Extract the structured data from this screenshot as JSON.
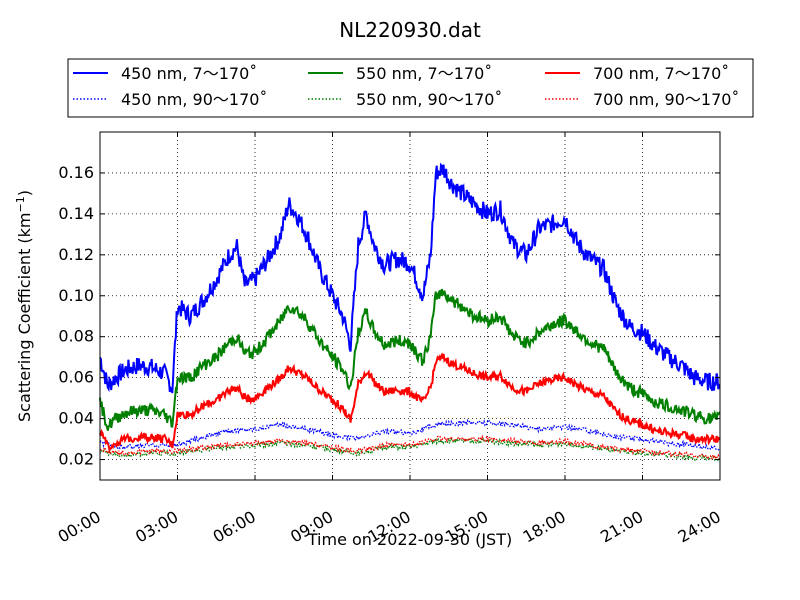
{
  "chart_data": {
    "type": "line",
    "title": "NL220930.dat",
    "xlabel": "Time on 2022-09-30 (JST)",
    "ylabel": "Scattering Coefficient (km",
    "ylabel_sup": "−1",
    "ylabel_end": ")",
    "x_unit": "hours",
    "xlim": [
      0,
      24
    ],
    "ylim": [
      0.01,
      0.18
    ],
    "x_ticks": [
      0,
      3,
      6,
      9,
      12,
      15,
      18,
      21,
      24
    ],
    "x_tick_labels": [
      "00:00",
      "03:00",
      "06:00",
      "09:00",
      "12:00",
      "15:00",
      "18:00",
      "21:00",
      "24:00"
    ],
    "y_ticks": [
      0.02,
      0.04,
      0.06,
      0.08,
      0.1,
      0.12,
      0.14,
      0.16
    ],
    "y_tick_labels": [
      "0.02",
      "0.04",
      "0.06",
      "0.08",
      "0.10",
      "0.12",
      "0.14",
      "0.16"
    ],
    "grid": true,
    "legend_position": "top, above plot, 3 columns",
    "series": [
      {
        "name": "450 nm, 7～170˚",
        "color": "#0000ff",
        "style": "solid",
        "x": [
          0,
          0.3,
          0.6,
          1.0,
          1.5,
          2.0,
          2.5,
          2.8,
          3.0,
          3.5,
          4.0,
          4.5,
          5.0,
          5.3,
          5.6,
          6.0,
          6.5,
          7.0,
          7.3,
          7.6,
          8.0,
          8.5,
          9.0,
          9.4,
          9.7,
          10.0,
          10.3,
          10.6,
          11.0,
          11.5,
          12.0,
          12.5,
          12.8,
          13.0,
          13.3,
          13.6,
          14.0,
          14.5,
          15.0,
          15.5,
          16.0,
          16.5,
          17.0,
          17.5,
          18.0,
          18.5,
          19.0,
          19.5,
          20.0,
          20.5,
          21.0,
          21.5,
          22.0,
          22.5,
          23.0,
          23.5,
          24.0
        ],
        "values": [
          0.07,
          0.056,
          0.06,
          0.064,
          0.066,
          0.065,
          0.062,
          0.055,
          0.095,
          0.09,
          0.098,
          0.108,
          0.12,
          0.124,
          0.105,
          0.108,
          0.118,
          0.13,
          0.145,
          0.14,
          0.13,
          0.113,
          0.1,
          0.09,
          0.076,
          0.125,
          0.14,
          0.125,
          0.115,
          0.118,
          0.116,
          0.1,
          0.12,
          0.16,
          0.162,
          0.155,
          0.15,
          0.145,
          0.14,
          0.142,
          0.125,
          0.12,
          0.133,
          0.135,
          0.138,
          0.125,
          0.118,
          0.113,
          0.095,
          0.085,
          0.082,
          0.075,
          0.07,
          0.066,
          0.06,
          0.058,
          0.058
        ]
      },
      {
        "name": "550 nm, 7～170˚",
        "color": "#008000",
        "style": "solid",
        "x": [
          0,
          0.3,
          0.6,
          1.0,
          1.5,
          2.0,
          2.5,
          2.8,
          3.0,
          3.5,
          4.0,
          4.5,
          5.0,
          5.3,
          5.6,
          6.0,
          6.5,
          7.0,
          7.3,
          7.6,
          8.0,
          8.5,
          9.0,
          9.4,
          9.7,
          10.0,
          10.3,
          10.6,
          11.0,
          11.5,
          12.0,
          12.5,
          12.8,
          13.0,
          13.3,
          13.6,
          14.0,
          14.5,
          15.0,
          15.5,
          16.0,
          16.5,
          17.0,
          17.5,
          18.0,
          18.5,
          19.0,
          19.5,
          20.0,
          20.5,
          21.0,
          21.5,
          22.0,
          22.5,
          23.0,
          23.5,
          24.0
        ],
        "values": [
          0.048,
          0.036,
          0.04,
          0.043,
          0.044,
          0.044,
          0.042,
          0.038,
          0.06,
          0.06,
          0.066,
          0.07,
          0.077,
          0.08,
          0.072,
          0.072,
          0.08,
          0.088,
          0.095,
          0.093,
          0.088,
          0.078,
          0.07,
          0.064,
          0.055,
          0.082,
          0.092,
          0.083,
          0.076,
          0.078,
          0.077,
          0.068,
          0.08,
          0.1,
          0.102,
          0.098,
          0.095,
          0.09,
          0.088,
          0.09,
          0.08,
          0.077,
          0.082,
          0.086,
          0.088,
          0.082,
          0.077,
          0.074,
          0.062,
          0.055,
          0.052,
          0.048,
          0.046,
          0.044,
          0.042,
          0.04,
          0.04
        ]
      },
      {
        "name": "700 nm, 7～170˚",
        "color": "#ff0000",
        "style": "solid",
        "x": [
          0,
          0.3,
          0.6,
          1.0,
          1.5,
          2.0,
          2.5,
          2.8,
          3.0,
          3.5,
          4.0,
          4.5,
          5.0,
          5.3,
          5.6,
          6.0,
          6.5,
          7.0,
          7.3,
          7.6,
          8.0,
          8.5,
          9.0,
          9.4,
          9.7,
          10.0,
          10.3,
          10.6,
          11.0,
          11.5,
          12.0,
          12.5,
          12.8,
          13.0,
          13.3,
          13.6,
          14.0,
          14.5,
          15.0,
          15.5,
          16.0,
          16.5,
          17.0,
          17.5,
          18.0,
          18.5,
          19.0,
          19.5,
          20.0,
          20.5,
          21.0,
          21.5,
          22.0,
          22.5,
          23.0,
          23.5,
          24.0
        ],
        "values": [
          0.034,
          0.026,
          0.028,
          0.03,
          0.031,
          0.031,
          0.03,
          0.027,
          0.042,
          0.042,
          0.046,
          0.049,
          0.054,
          0.055,
          0.05,
          0.05,
          0.055,
          0.06,
          0.065,
          0.063,
          0.06,
          0.054,
          0.049,
          0.045,
          0.039,
          0.057,
          0.063,
          0.058,
          0.053,
          0.054,
          0.053,
          0.048,
          0.055,
          0.068,
          0.07,
          0.067,
          0.065,
          0.062,
          0.06,
          0.061,
          0.055,
          0.053,
          0.057,
          0.059,
          0.06,
          0.056,
          0.053,
          0.051,
          0.043,
          0.039,
          0.037,
          0.034,
          0.033,
          0.032,
          0.03,
          0.03,
          0.03
        ]
      },
      {
        "name": "450 nm, 90～170˚",
        "color": "#0000ff",
        "style": "dotted",
        "x": [
          0,
          1,
          2,
          3,
          4,
          5,
          6,
          7,
          8,
          9,
          10,
          11,
          12,
          13,
          14,
          15,
          16,
          17,
          18,
          19,
          20,
          21,
          22,
          23,
          24
        ],
        "values": [
          0.028,
          0.026,
          0.027,
          0.027,
          0.031,
          0.034,
          0.035,
          0.037,
          0.035,
          0.032,
          0.03,
          0.034,
          0.033,
          0.037,
          0.038,
          0.038,
          0.037,
          0.035,
          0.036,
          0.034,
          0.031,
          0.03,
          0.028,
          0.027,
          0.025
        ]
      },
      {
        "name": "550 nm, 90～170˚",
        "color": "#008000",
        "style": "dotted",
        "x": [
          0,
          1,
          2,
          3,
          4,
          5,
          6,
          7,
          8,
          9,
          10,
          11,
          12,
          13,
          14,
          15,
          16,
          17,
          18,
          19,
          20,
          21,
          22,
          23,
          24
        ],
        "values": [
          0.024,
          0.022,
          0.023,
          0.023,
          0.025,
          0.026,
          0.027,
          0.028,
          0.027,
          0.025,
          0.023,
          0.026,
          0.026,
          0.029,
          0.029,
          0.029,
          0.028,
          0.027,
          0.028,
          0.026,
          0.024,
          0.023,
          0.022,
          0.021,
          0.02
        ]
      },
      {
        "name": "700 nm, 90～170˚",
        "color": "#ff0000",
        "style": "dotted",
        "x": [
          0,
          1,
          2,
          3,
          4,
          5,
          6,
          7,
          8,
          9,
          10,
          11,
          12,
          13,
          14,
          15,
          16,
          17,
          18,
          19,
          20,
          21,
          22,
          23,
          24
        ],
        "values": [
          0.025,
          0.023,
          0.024,
          0.024,
          0.026,
          0.027,
          0.028,
          0.029,
          0.028,
          0.026,
          0.024,
          0.027,
          0.027,
          0.03,
          0.03,
          0.03,
          0.029,
          0.028,
          0.029,
          0.027,
          0.025,
          0.024,
          0.023,
          0.022,
          0.021
        ]
      }
    ]
  }
}
